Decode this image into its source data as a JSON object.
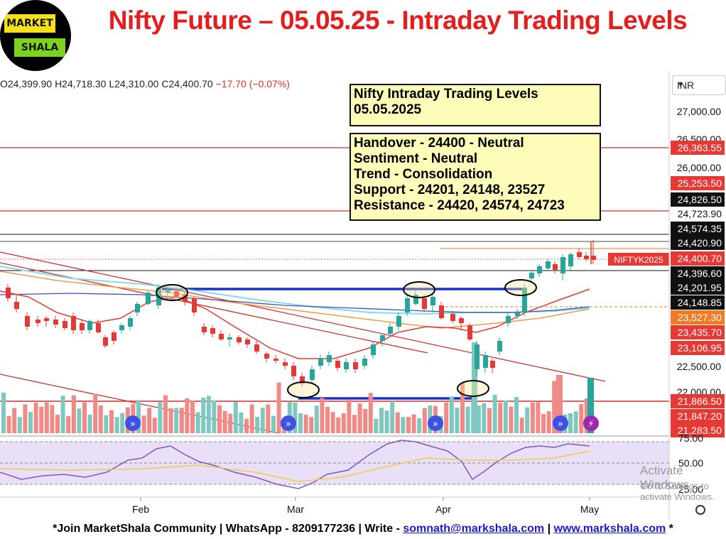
{
  "logo": {
    "line1": "MARKET",
    "line2": "SHALA"
  },
  "title": "Nifty Future – 05.05.25 - Intraday Trading Levels",
  "ohlc": {
    "o": "O24,399.90",
    "h": "H24,718.30",
    "l": "L24,310.00",
    "c": "C24,400.70",
    "chg": "−17.70 (−0.07%)"
  },
  "currency": "INR",
  "info_box_1": {
    "line1": "Nifty Intraday Trading Levels",
    "line2": "05.05.2025"
  },
  "info_box_2": {
    "handover": "Handover - 24400 - Neutral",
    "sentiment": "Sentiment - Neutral",
    "trend": "Trend - Consolidation",
    "support": "Support - 24201, 24148, 23527",
    "resistance": "Resistance - 24420, 24574, 24723"
  },
  "chart_data": {
    "type": "candlestick",
    "symbol_tag": "NIFTYK2025",
    "y_axis_ticks": [
      "27,000.00",
      "26,500.00",
      "26,000.00",
      "22,500.00",
      "22,000.00"
    ],
    "x_axis_labels": [
      "Feb",
      "Mar",
      "Apr",
      "May"
    ],
    "price_labels": [
      {
        "value": "26,363.55",
        "bg": "#e53935",
        "fg": "#ffffff",
        "price": 26363.55
      },
      {
        "value": "25,253.50",
        "bg": "#e53935",
        "fg": "#ffffff",
        "price": 25253.5
      },
      {
        "value": "24,826.50",
        "bg": "#111111",
        "fg": "#ffffff",
        "price": 24826.5
      },
      {
        "value": "24,723.90",
        "bg": "#ffffff",
        "fg": "#111111",
        "price": 24723.9
      },
      {
        "value": "24,574.35",
        "bg": "#111111",
        "fg": "#ffffff",
        "price": 24574.35
      },
      {
        "value": "24,420.90",
        "bg": "#111111",
        "fg": "#ffffff",
        "price": 24420.9
      },
      {
        "value": "24,400.70",
        "bg": "#e53935",
        "fg": "#ffffff",
        "price": 24400.7
      },
      {
        "value": "24,396.60",
        "bg": "#111111",
        "fg": "#ffffff",
        "price": 24396.6
      },
      {
        "value": "24,201.95",
        "bg": "#111111",
        "fg": "#ffffff",
        "price": 24201.95
      },
      {
        "value": "24,148.85",
        "bg": "#111111",
        "fg": "#ffffff",
        "price": 24148.85
      },
      {
        "value": "23,527.30",
        "bg": "#ef7b24",
        "fg": "#ffffff",
        "price": 23527.3
      },
      {
        "value": "23,435.70",
        "bg": "#e53935",
        "fg": "#ffffff",
        "price": 23435.7
      },
      {
        "value": "23,106.95",
        "bg": "#e53935",
        "fg": "#ffffff",
        "price": 23106.95
      },
      {
        "value": "21,866.50",
        "bg": "#e53935",
        "fg": "#ffffff",
        "price": 21866.5
      },
      {
        "value": "21,847.20",
        "bg": "#e53935",
        "fg": "#ffffff",
        "price": 21847.2
      },
      {
        "value": "21,283.50",
        "bg": "#e53935",
        "fg": "#ffffff",
        "price": 21283.5
      }
    ],
    "rsi_ticks": [
      "75.00",
      "50.00",
      "25.00"
    ],
    "rsi_levels": [
      70,
      50,
      30
    ],
    "colors": {
      "up": "#26a69a",
      "down": "#e53935",
      "rsi": "#7e57c2",
      "rsi_ma": "#f2c94c"
    }
  },
  "watermark": {
    "line1": "Activate Windows",
    "line2": "Go to Settings to activate Windows."
  },
  "footer": {
    "prefix": "*Join MarketShala Community | WhatsApp - 8209177236 | Write - ",
    "email": "somnath@markshala.com",
    "sep": " | ",
    "site": "www.markshala.com",
    "suffix": " *"
  }
}
